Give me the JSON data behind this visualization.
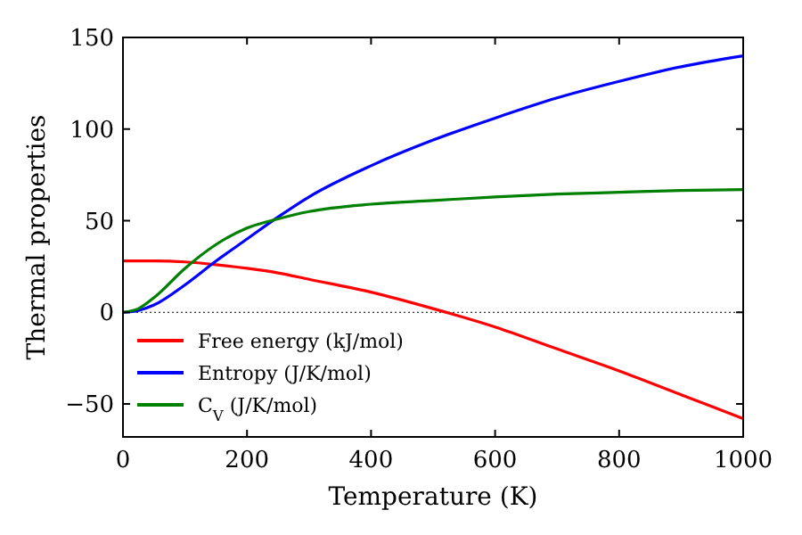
{
  "chart_data": {
    "type": "line",
    "xlabel": "Temperature (K)",
    "ylabel": "Thermal properties",
    "x": [
      0,
      25,
      50,
      100,
      150,
      200,
      250,
      300,
      400,
      500,
      600,
      700,
      800,
      900,
      1000
    ],
    "series": [
      {
        "name": "Free energy (kJ/mol)",
        "color": "#ff0000",
        "values": [
          28,
          28,
          28,
          27.5,
          26,
          24,
          21.5,
          18,
          11,
          2,
          -8,
          -20,
          -32,
          -45,
          -58
        ]
      },
      {
        "name": "Entropy (J/K/mol)",
        "color": "#0000ff",
        "values": [
          0,
          1,
          4,
          15,
          28,
          40,
          52,
          63,
          80,
          94,
          106,
          117,
          126,
          134,
          140
        ]
      },
      {
        "name": "C$_{V}$ (J/K/mol)",
        "color": "#008000",
        "values": [
          0,
          2,
          8,
          24,
          37,
          46,
          51,
          55,
          59,
          61,
          63,
          64.5,
          65.5,
          66.5,
          67
        ]
      }
    ],
    "xlim": [
      0,
      1000
    ],
    "xticks": [
      0,
      200,
      400,
      600,
      800,
      1000
    ],
    "ylim": [
      -68,
      150
    ],
    "yticks": [
      -50,
      0,
      50,
      100,
      150
    ],
    "ref_lines": [
      {
        "axis": "y",
        "value": 0,
        "color": "#000000",
        "line_style": "dotted"
      }
    ],
    "legend": "lower left",
    "grid": false
  }
}
